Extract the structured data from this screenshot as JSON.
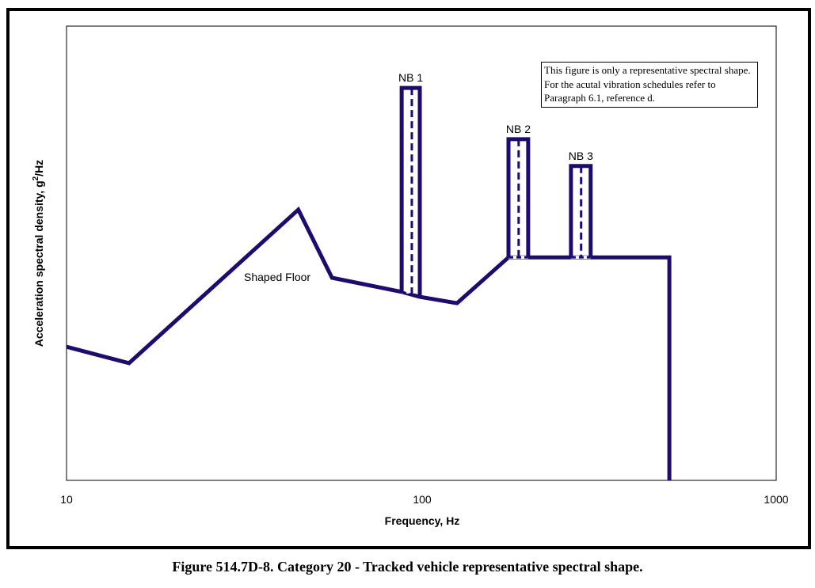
{
  "chart_data": {
    "type": "line",
    "title": "",
    "caption": "Figure 514.7D-8.  Category 20 - Tracked vehicle representative spectral shape.",
    "xlabel": "Frequency, Hz",
    "ylabel_main": "Acceleration spectral density, g",
    "ylabel_sup": "2",
    "ylabel_tail": "/Hz",
    "xscale": "log",
    "xlim": [
      10,
      1000
    ],
    "ylim": [
      0,
      100
    ],
    "y_units_note": "relative (no y tick labels shown)",
    "x_ticks": [
      "10",
      "100",
      "1000"
    ],
    "x_tick_values": [
      10,
      100,
      1000
    ],
    "grid": false,
    "color": "#1f0a6e",
    "shaped_floor": {
      "label": "Shaped Floor",
      "x": [
        10,
        15,
        45,
        56,
        88,
        99,
        126,
        176,
        264,
        300,
        500,
        500
      ],
      "y": [
        29.4,
        25.8,
        59.6,
        44.6,
        41.5,
        40.4,
        39.0,
        49.1,
        49.1,
        49.1,
        49.1,
        0
      ]
    },
    "narrowbands": [
      {
        "label": "NB 1",
        "f_low": 88,
        "f_high": 99,
        "f_center": 94,
        "top": 86.4,
        "base_low": 41.5,
        "base_high": 40.4
      },
      {
        "label": "NB 2",
        "f_low": 176,
        "f_high": 200,
        "f_center": 188,
        "top": 75.1,
        "base_low": 49.1,
        "base_high": 49.1
      },
      {
        "label": "NB 3",
        "f_low": 264,
        "f_high": 300,
        "f_center": 282,
        "top": 69.2,
        "base_low": 49.1,
        "base_high": 49.1
      }
    ],
    "note": "This figure is only a representative spectral shape.  For the acutal vibration schedules refer to Paragraph 6.1, reference d."
  }
}
